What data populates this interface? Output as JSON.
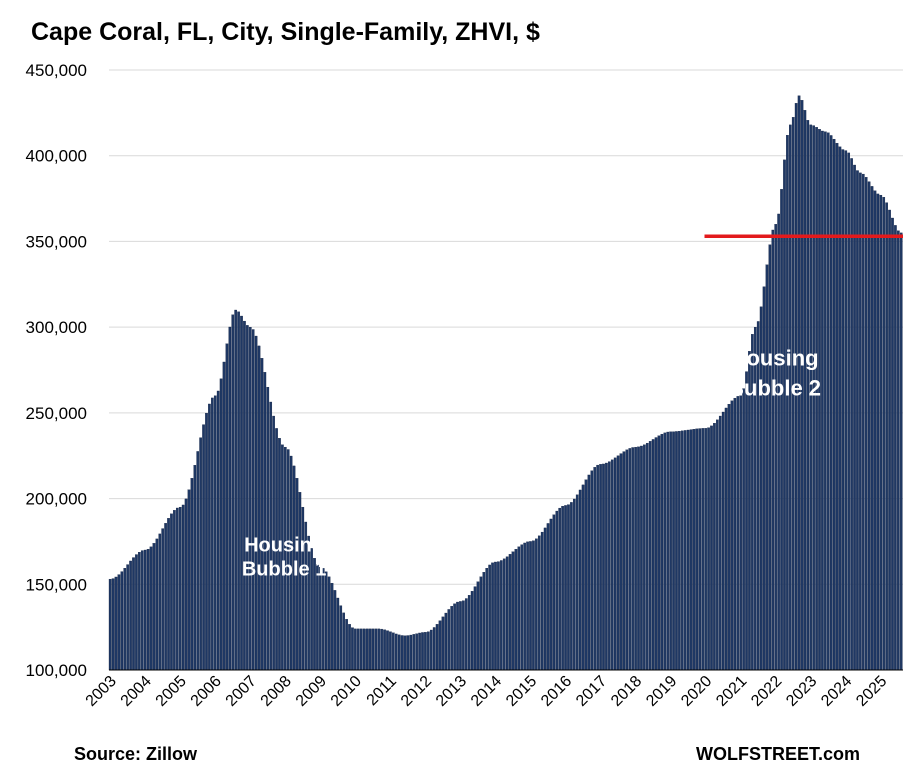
{
  "chart_data": {
    "type": "bar",
    "title": "Cape Coral, FL, City, Single-Family, ZHVI, $",
    "xlabel": "",
    "ylabel": "",
    "ylim": [
      100000,
      450000
    ],
    "yticks": [
      100000,
      150000,
      200000,
      250000,
      300000,
      350000,
      400000,
      450000
    ],
    "ytick_labels": [
      "100,000",
      "150,000",
      "200,000",
      "250,000",
      "300,000",
      "350,000",
      "400,000",
      "450,000"
    ],
    "x_range": [
      "2003-01",
      "2025-08"
    ],
    "xtick_labels": [
      "2003",
      "2004",
      "2005",
      "2006",
      "2007",
      "2008",
      "2009",
      "2010",
      "2011",
      "2012",
      "2013",
      "2014",
      "2015",
      "2016",
      "2017",
      "2018",
      "2019",
      "2020",
      "2021",
      "2022",
      "2023",
      "2024",
      "2025"
    ],
    "grid": true,
    "bar_color": "#1f3864",
    "reference_line": {
      "value": 353000,
      "from": "2020-01",
      "to": "2025-08",
      "color": "#e31a1c"
    },
    "annotations": [
      {
        "text": [
          "Housing",
          "Bubble 1"
        ],
        "x": "2008-01",
        "y": 155000
      },
      {
        "text": [
          "Housing",
          "Bubble 2"
        ],
        "x": "2022-01",
        "y": 260000
      }
    ],
    "key_points": [
      {
        "x": "2003-01",
        "y": 153000
      },
      {
        "x": "2004-01",
        "y": 170000
      },
      {
        "x": "2005-01",
        "y": 195000
      },
      {
        "x": "2006-01",
        "y": 260000
      },
      {
        "x": "2006-08",
        "y": 310000
      },
      {
        "x": "2007-01",
        "y": 300000
      },
      {
        "x": "2008-01",
        "y": 230000
      },
      {
        "x": "2009-01",
        "y": 160000
      },
      {
        "x": "2010-01",
        "y": 124000
      },
      {
        "x": "2010-09",
        "y": 124000
      },
      {
        "x": "2011-06",
        "y": 120000
      },
      {
        "x": "2012-01",
        "y": 122000
      },
      {
        "x": "2013-01",
        "y": 140000
      },
      {
        "x": "2014-01",
        "y": 163000
      },
      {
        "x": "2015-01",
        "y": 175000
      },
      {
        "x": "2016-01",
        "y": 196000
      },
      {
        "x": "2017-01",
        "y": 220000
      },
      {
        "x": "2018-01",
        "y": 230000
      },
      {
        "x": "2019-01",
        "y": 239000
      },
      {
        "x": "2020-01",
        "y": 241000
      },
      {
        "x": "2021-01",
        "y": 260000
      },
      {
        "x": "2021-06",
        "y": 300000
      },
      {
        "x": "2022-01",
        "y": 360000
      },
      {
        "x": "2022-06",
        "y": 418000
      },
      {
        "x": "2022-09",
        "y": 435000
      },
      {
        "x": "2023-01",
        "y": 418000
      },
      {
        "x": "2023-06",
        "y": 414000
      },
      {
        "x": "2024-01",
        "y": 403000
      },
      {
        "x": "2024-06",
        "y": 390000
      },
      {
        "x": "2025-01",
        "y": 377000
      },
      {
        "x": "2025-08",
        "y": 355000
      }
    ],
    "source": "Source: Zillow",
    "brand": "WOLFSTREET.com"
  }
}
